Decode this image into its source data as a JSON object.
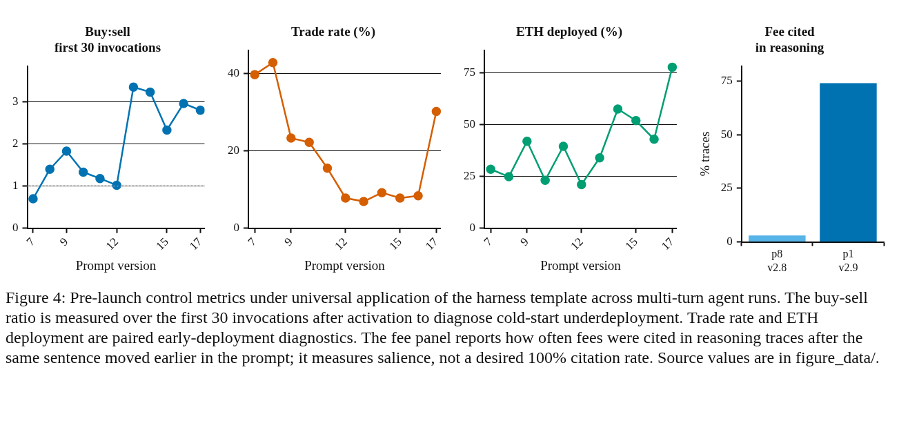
{
  "chart_data": [
    {
      "type": "line",
      "title": "Buy:sell\nfirst 30 invocations",
      "xlabel": "Prompt version",
      "x": [
        7,
        8,
        9,
        10,
        11,
        12,
        13,
        14,
        15,
        16,
        17
      ],
      "series": [
        {
          "color": "#0072b2",
          "values": [
            0.7,
            1.4,
            1.83,
            1.33,
            1.18,
            1.02,
            3.35,
            3.23,
            2.33,
            2.96,
            2.8
          ]
        }
      ],
      "xlim": [
        6.65,
        17.25
      ],
      "xticks": [
        7,
        9,
        12,
        15,
        17
      ],
      "ylim": [
        0,
        3.85
      ],
      "yticks": [
        0,
        1,
        2,
        3
      ],
      "grid": "y",
      "marker": "circle",
      "line_style": "solid",
      "legend": false,
      "ref_lines": [
        {
          "axis": "y",
          "value": 1,
          "color": "#b0b0b0",
          "line_style": "dotted"
        }
      ]
    },
    {
      "type": "line",
      "title": "Trade rate (%)",
      "xlabel": "Prompt version",
      "x": [
        7,
        8,
        9,
        10,
        11,
        12,
        13,
        14,
        15,
        16,
        17
      ],
      "series": [
        {
          "color": "#d55e00",
          "values": [
            39.7,
            42.8,
            23.3,
            22.2,
            15.5,
            7.8,
            6.9,
            9.2,
            7.8,
            8.4,
            30.2
          ]
        }
      ],
      "xlim": [
        6.65,
        17.25
      ],
      "xticks": [
        7,
        9,
        12,
        15,
        17
      ],
      "ylim": [
        0,
        46
      ],
      "yticks": [
        0,
        20,
        40
      ],
      "grid": "y",
      "marker": "circle",
      "line_style": "solid",
      "legend": false
    },
    {
      "type": "line",
      "title": "ETH deployed (%)",
      "xlabel": "Prompt version",
      "x": [
        7,
        8,
        9,
        10,
        11,
        12,
        13,
        14,
        15,
        16,
        17
      ],
      "series": [
        {
          "color": "#009e73",
          "values": [
            28.5,
            24.9,
            42,
            23.2,
            39.6,
            21.1,
            34,
            57.6,
            52,
            43,
            77.8
          ]
        }
      ],
      "xlim": [
        6.65,
        17.25
      ],
      "xticks": [
        7,
        9,
        12,
        15,
        17
      ],
      "ylim": [
        0,
        86
      ],
      "yticks": [
        0,
        25,
        50,
        75
      ],
      "grid": "y",
      "marker": "circle",
      "line_style": "solid",
      "legend": false
    },
    {
      "type": "bar",
      "title": "Fee cited\nin reasoning",
      "ylabel": "% traces",
      "categories": [
        "p8\nv2.8",
        "p1\nv2.9"
      ],
      "values": [
        3,
        74
      ],
      "colors": [
        "#56b4e9",
        "#0072b2"
      ],
      "ylim": [
        0,
        82
      ],
      "yticks": [
        0,
        25,
        50,
        75
      ],
      "grid": false,
      "legend": false,
      "annotations": [
        "Figure 4: Pre-launch control metrics under universal application of the harness template across multi-turn agent runs. The buy-sell ratio is measured over the first 30 invocations after activation to diagnose cold-start underdeployment.  Trade rate and ETH deployment are paired early-deployment diagnostics. The fee panel reports how often fees were cited in reasoning traces after the same sentence moved earlier in the prompt; it measures salience, not a desired 100% citation rate. Source values are in figure_data/."
      ]
    }
  ]
}
